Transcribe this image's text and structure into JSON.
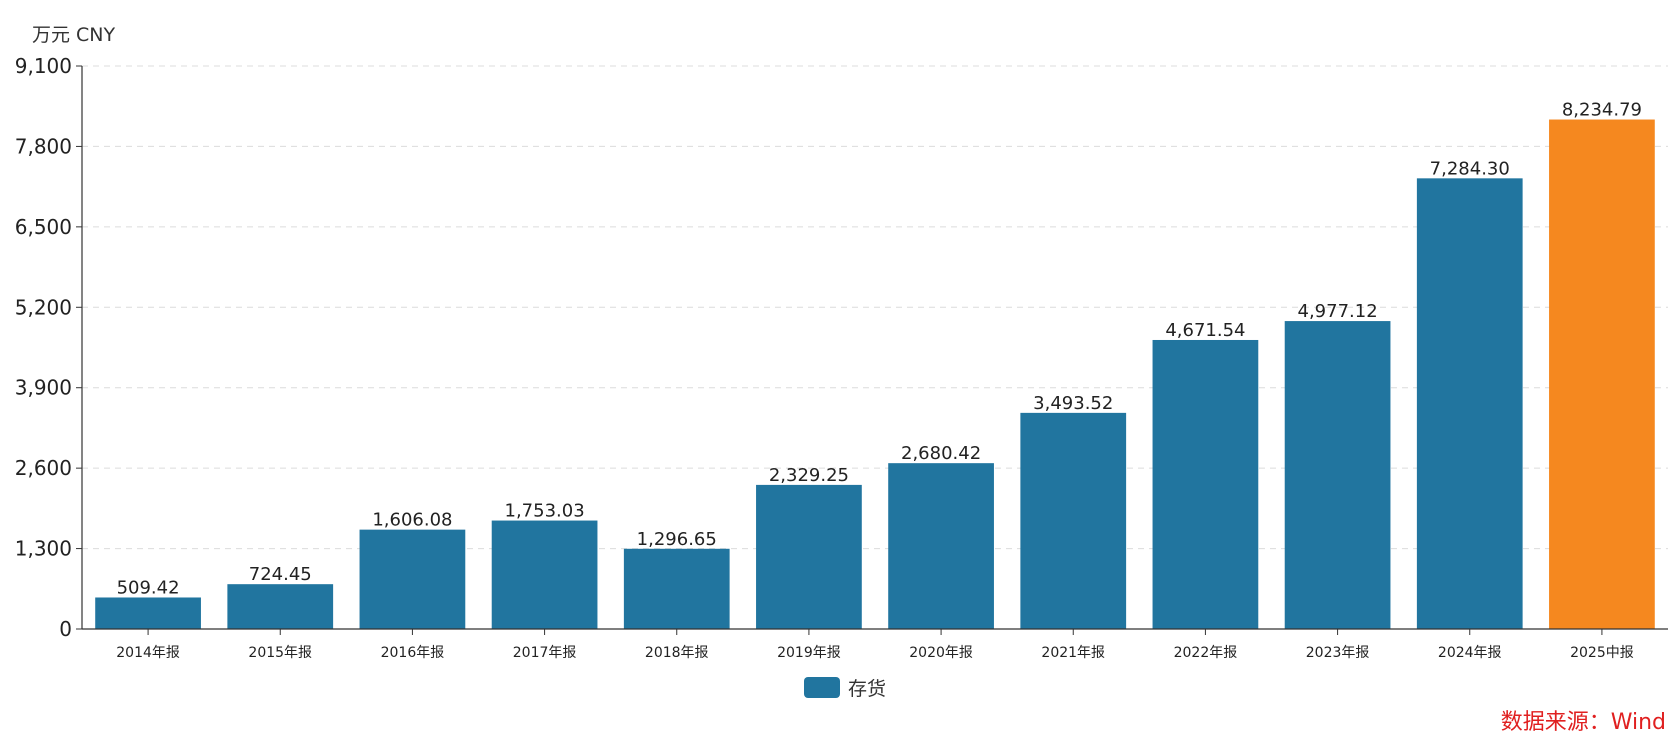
{
  "chart_data": {
    "type": "bar",
    "unit_label": "万元  CNY",
    "categories": [
      "2014年报",
      "2015年报",
      "2016年报",
      "2017年报",
      "2018年报",
      "2019年报",
      "2020年报",
      "2021年报",
      "2022年报",
      "2023年报",
      "2024年报",
      "2025中报"
    ],
    "series": [
      {
        "name": "存货",
        "values": [
          509.42,
          724.45,
          1606.08,
          1753.03,
          1296.65,
          2329.25,
          2680.42,
          3493.52,
          4671.54,
          4977.12,
          7284.3,
          8234.79
        ],
        "value_labels": [
          "509.42",
          "724.45",
          "1,606.08",
          "1,753.03",
          "1,296.65",
          "2,329.25",
          "2,680.42",
          "3,493.52",
          "4,671.54",
          "4,977.12",
          "7,284.30",
          "8,234.79"
        ]
      }
    ],
    "highlight_index": 11,
    "ylim": [
      0,
      9100
    ],
    "yticks": [
      0,
      1300,
      2600,
      3900,
      5200,
      6500,
      7800,
      9100
    ],
    "ytick_labels": [
      "0",
      "1,300",
      "2,600",
      "3,900",
      "5,200",
      "6,500",
      "7,800",
      "9,100"
    ],
    "grid": true,
    "legend_position": "bottom-center",
    "colors": {
      "bar": "#21759f",
      "highlight": "#f5881f",
      "grid": "#dcdcdc",
      "axis": "#333333"
    }
  },
  "source_text": "数据来源：Wind"
}
